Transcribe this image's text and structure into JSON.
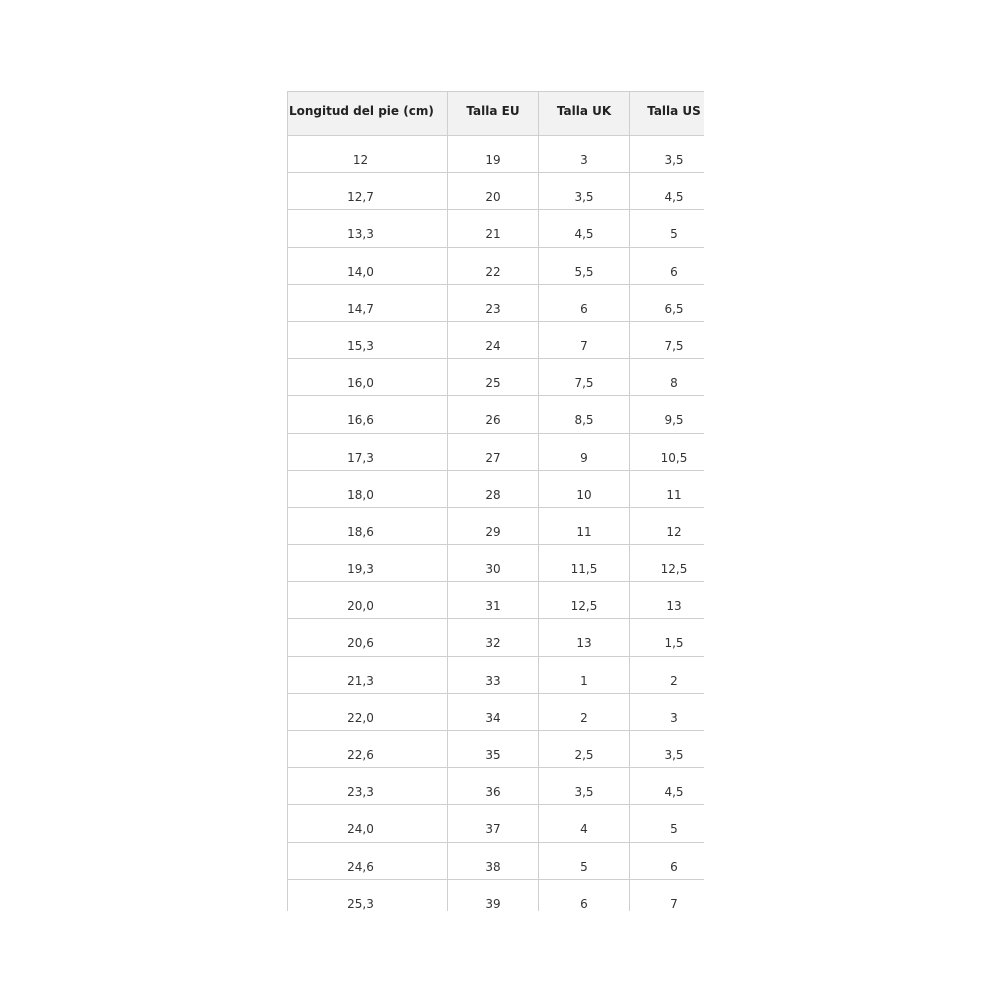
{
  "table": {
    "headers": [
      "Longitud del pie (cm)",
      "Talla EU",
      "Talla UK",
      "Talla US"
    ],
    "rows": [
      [
        "12",
        "19",
        "3",
        "3,5"
      ],
      [
        "12,7",
        "20",
        "3,5",
        "4,5"
      ],
      [
        "13,3",
        "21",
        "4,5",
        "5"
      ],
      [
        "14,0",
        "22",
        "5,5",
        "6"
      ],
      [
        "14,7",
        "23",
        "6",
        "6,5"
      ],
      [
        "15,3",
        "24",
        "7",
        "7,5"
      ],
      [
        "16,0",
        "25",
        "7,5",
        "8"
      ],
      [
        "16,6",
        "26",
        "8,5",
        "9,5"
      ],
      [
        "17,3",
        "27",
        "9",
        "10,5"
      ],
      [
        "18,0",
        "28",
        "10",
        "11"
      ],
      [
        "18,6",
        "29",
        "11",
        "12"
      ],
      [
        "19,3",
        "30",
        "11,5",
        "12,5"
      ],
      [
        "20,0",
        "31",
        "12,5",
        "13"
      ],
      [
        "20,6",
        "32",
        "13",
        "1,5"
      ],
      [
        "21,3",
        "33",
        "1",
        "2"
      ],
      [
        "22,0",
        "34",
        "2",
        "3"
      ],
      [
        "22,6",
        "35",
        "2,5",
        "3,5"
      ],
      [
        "23,3",
        "36",
        "3,5",
        "4,5"
      ],
      [
        "24,0",
        "37",
        "4",
        "5"
      ],
      [
        "24,6",
        "38",
        "5",
        "6"
      ],
      [
        "25,3",
        "39",
        "6",
        "7"
      ]
    ]
  }
}
